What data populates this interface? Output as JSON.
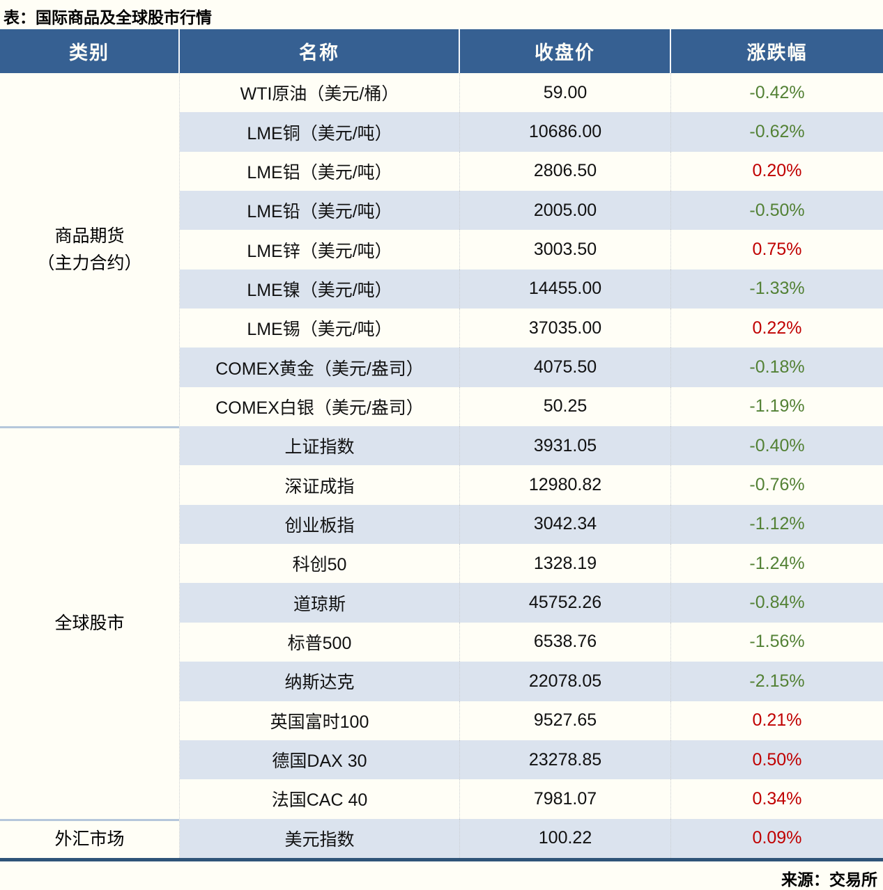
{
  "title": "表：国际商品及全球股市行情",
  "source": "来源：交易所",
  "colors": {
    "header_bg": "#366092",
    "alt_row_bg": "#DBE3EE",
    "row_bg": "#FFFEF6",
    "positive_change_red": "#C00000",
    "negative_change_green": "#538135",
    "bottom_border": "#2F5478",
    "section_divider": "#B5C7DB"
  },
  "table": {
    "headers": [
      "类别",
      "名称",
      "收盘价",
      "涨跌幅"
    ],
    "sections": [
      {
        "label_lines": [
          "商品期货",
          "（主力合约）"
        ],
        "rows": [
          {
            "name": "WTI原油（美元/桶）",
            "close": "59.00",
            "change": "-0.42%"
          },
          {
            "name": "LME铜（美元/吨）",
            "close": "10686.00",
            "change": "-0.62%"
          },
          {
            "name": "LME铝（美元/吨）",
            "close": "2806.50",
            "change": "0.20%"
          },
          {
            "name": "LME铅（美元/吨）",
            "close": "2005.00",
            "change": "-0.50%"
          },
          {
            "name": "LME锌（美元/吨）",
            "close": "3003.50",
            "change": "0.75%"
          },
          {
            "name": "LME镍（美元/吨）",
            "close": "14455.00",
            "change": "-1.33%"
          },
          {
            "name": "LME锡（美元/吨）",
            "close": "37035.00",
            "change": "0.22%"
          },
          {
            "name": "COMEX黄金（美元/盎司）",
            "close": "4075.50",
            "change": "-0.18%"
          },
          {
            "name": "COMEX白银（美元/盎司）",
            "close": "50.25",
            "change": "-1.19%"
          }
        ]
      },
      {
        "label_lines": [
          "全球股市"
        ],
        "rows": [
          {
            "name": "上证指数",
            "close": "3931.05",
            "change": "-0.40%"
          },
          {
            "name": "深证成指",
            "close": "12980.82",
            "change": "-0.76%"
          },
          {
            "name": "创业板指",
            "close": "3042.34",
            "change": "-1.12%"
          },
          {
            "name": "科创50",
            "close": "1328.19",
            "change": "-1.24%"
          },
          {
            "name": "道琼斯",
            "close": "45752.26",
            "change": "-0.84%"
          },
          {
            "name": "标普500",
            "close": "6538.76",
            "change": "-1.56%"
          },
          {
            "name": "纳斯达克",
            "close": "22078.05",
            "change": "-2.15%"
          },
          {
            "name": "英国富时100",
            "close": "9527.65",
            "change": "0.21%"
          },
          {
            "name": "德国DAX 30",
            "close": "23278.85",
            "change": "0.50%"
          },
          {
            "name": "法国CAC 40",
            "close": "7981.07",
            "change": "0.34%"
          }
        ]
      },
      {
        "label_lines": [
          "外汇市场"
        ],
        "rows": [
          {
            "name": "美元指数",
            "close": "100.22",
            "change": "0.09%"
          }
        ]
      }
    ]
  },
  "chart_data": {
    "type": "table",
    "title": "表：国际商品及全球股市行情",
    "columns": [
      "类别",
      "名称",
      "收盘价",
      "涨跌幅"
    ],
    "rows": [
      [
        "商品期货（主力合约）",
        "WTI原油（美元/桶）",
        "59.00",
        "-0.42%"
      ],
      [
        "商品期货（主力合约）",
        "LME铜（美元/吨）",
        "10686.00",
        "-0.62%"
      ],
      [
        "商品期货（主力合约）",
        "LME铝（美元/吨）",
        "2806.50",
        "0.20%"
      ],
      [
        "商品期货（主力合约）",
        "LME铅（美元/吨）",
        "2005.00",
        "-0.50%"
      ],
      [
        "商品期货（主力合约）",
        "LME锌（美元/吨）",
        "3003.50",
        "0.75%"
      ],
      [
        "商品期货（主力合约）",
        "LME镍（美元/吨）",
        "14455.00",
        "-1.33%"
      ],
      [
        "商品期货（主力合约）",
        "LME锡（美元/吨）",
        "37035.00",
        "0.22%"
      ],
      [
        "商品期货（主力合约）",
        "COMEX黄金（美元/盎司）",
        "4075.50",
        "-0.18%"
      ],
      [
        "商品期货（主力合约）",
        "COMEX白银（美元/盎司）",
        "50.25",
        "-1.19%"
      ],
      [
        "全球股市",
        "上证指数",
        "3931.05",
        "-0.40%"
      ],
      [
        "全球股市",
        "深证成指",
        "12980.82",
        "-0.76%"
      ],
      [
        "全球股市",
        "创业板指",
        "3042.34",
        "-1.12%"
      ],
      [
        "全球股市",
        "科创50",
        "1328.19",
        "-1.24%"
      ],
      [
        "全球股市",
        "道琼斯",
        "45752.26",
        "-0.84%"
      ],
      [
        "全球股市",
        "标普500",
        "6538.76",
        "-1.56%"
      ],
      [
        "全球股市",
        "纳斯达克",
        "22078.05",
        "-2.15%"
      ],
      [
        "全球股市",
        "英国富时100",
        "9527.65",
        "0.21%"
      ],
      [
        "全球股市",
        "德国DAX 30",
        "23278.85",
        "0.50%"
      ],
      [
        "全球股市",
        "法国CAC 40",
        "7981.07",
        "0.34%"
      ],
      [
        "外汇市场",
        "美元指数",
        "100.22",
        "0.09%"
      ]
    ],
    "source": "来源：交易所",
    "color_convention": "red = rise (涨), green = fall (跌)"
  }
}
